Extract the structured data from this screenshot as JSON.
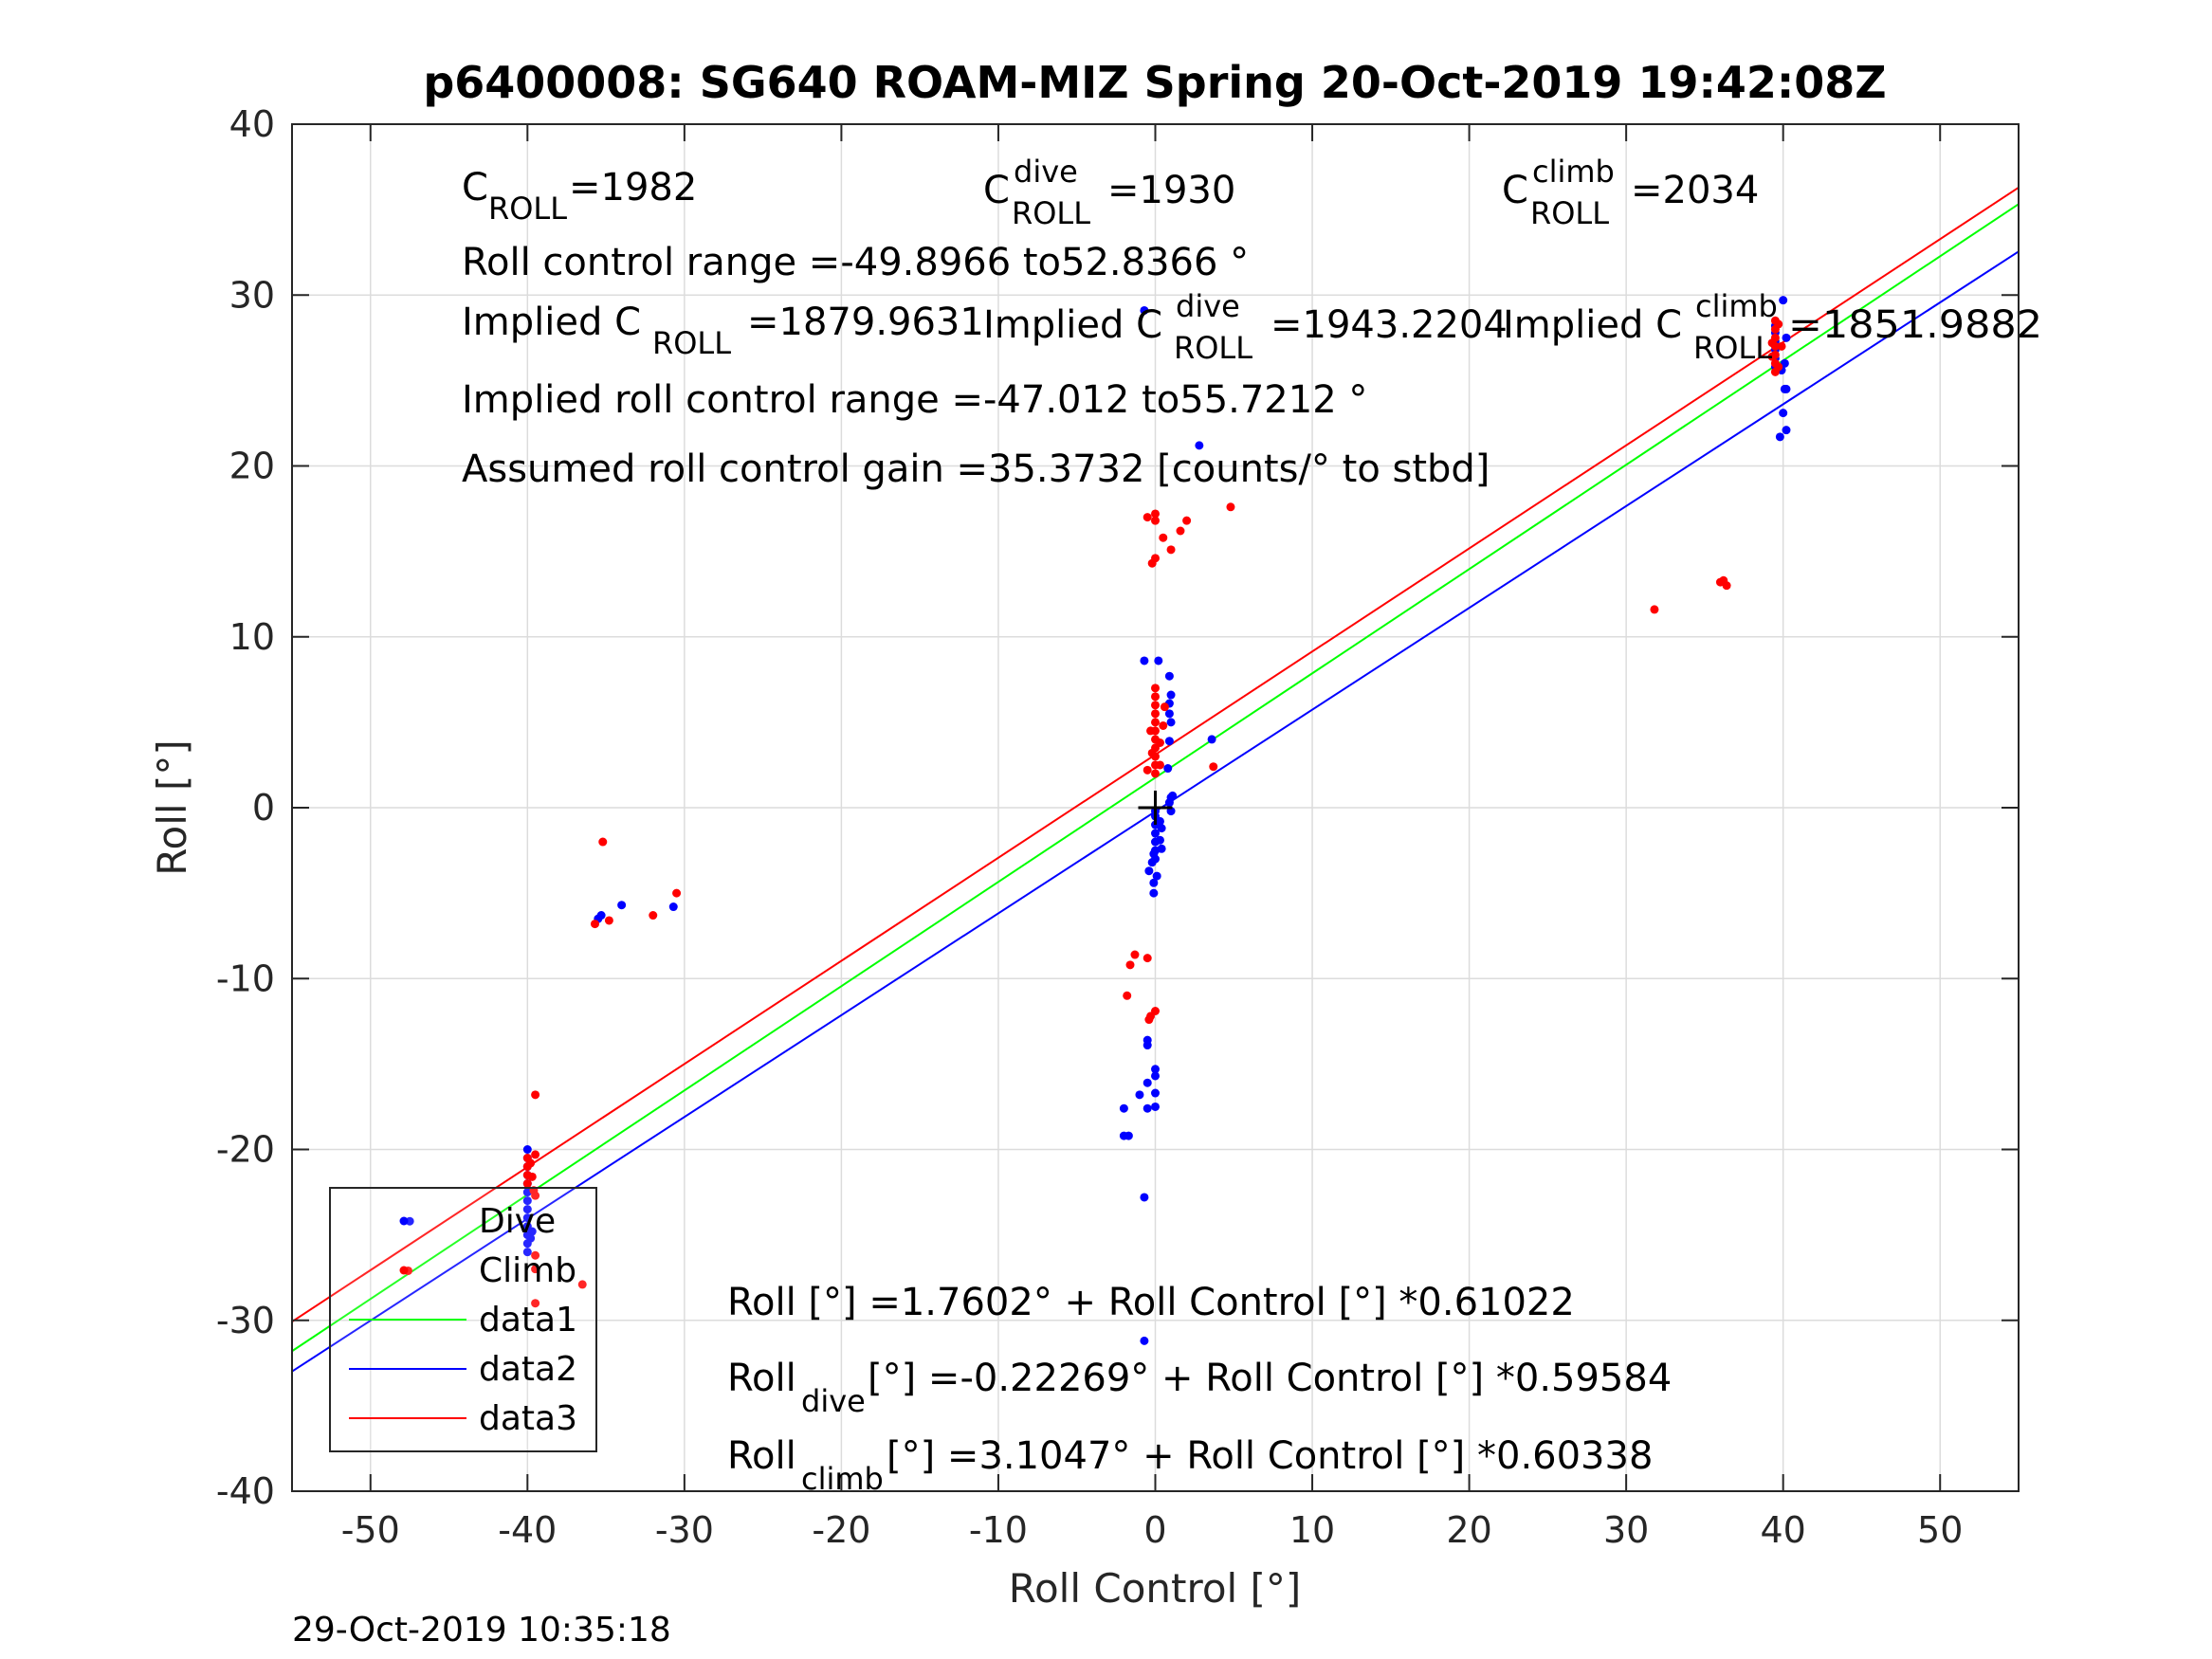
{
  "chart_data": {
    "type": "scatter",
    "title": "p6400008: SG640 ROAM-MIZ Spring 20-Oct-2019 19:42:08Z",
    "xlabel": "Roll Control [°]",
    "ylabel": "Roll [°]",
    "xlim": [
      -55,
      55
    ],
    "ylim": [
      -40,
      40
    ],
    "xticks": [
      -50,
      -40,
      -30,
      -20,
      -10,
      0,
      10,
      20,
      30,
      40,
      50
    ],
    "yticks": [
      -40,
      -30,
      -20,
      -10,
      0,
      10,
      20,
      30,
      40
    ],
    "xtick_labels": [
      "-50",
      "-40",
      "-30",
      "-20",
      "-10",
      "0",
      "10",
      "20",
      "30",
      "40",
      "50"
    ],
    "ytick_labels": [
      "-40",
      "-30",
      "-20",
      "-10",
      "0",
      "10",
      "20",
      "30",
      "40"
    ],
    "grid": true,
    "legend_position": "bottom-left",
    "legend": [
      "Dive",
      "Climb",
      "data1",
      "data2",
      "data3"
    ],
    "colors": {
      "dive": "#0000ff",
      "climb": "#ff0000",
      "data1": "#00ff00",
      "data2": "#0000ff",
      "data3": "#ff0000",
      "origin": "#000000"
    },
    "series": [
      {
        "name": "Dive",
        "style": "points",
        "color": "#0000ff",
        "points": [
          [
            -47.5,
            -24.2
          ],
          [
            -40.0,
            -20.0
          ],
          [
            -40.0,
            -20.5
          ],
          [
            -40.0,
            -21.0
          ],
          [
            -40.0,
            -21.5
          ],
          [
            -40.0,
            -22.0
          ],
          [
            -40.0,
            -22.5
          ],
          [
            -40.0,
            -23.0
          ],
          [
            -40.0,
            -23.5
          ],
          [
            -40.0,
            -24.0
          ],
          [
            -40.0,
            -24.5
          ],
          [
            -40.0,
            -25.0
          ],
          [
            -40.0,
            -25.5
          ],
          [
            -40.0,
            -26.0
          ],
          [
            -39.8,
            -25.2
          ],
          [
            -39.7,
            -24.8
          ],
          [
            -35.5,
            -6.5
          ],
          [
            -35.3,
            -6.3
          ],
          [
            -34.0,
            -5.7
          ],
          [
            -30.7,
            -5.8
          ],
          [
            -0.7,
            8.6
          ],
          [
            0.2,
            8.6
          ],
          [
            0.9,
            7.7
          ],
          [
            1.0,
            6.6
          ],
          [
            0.9,
            6.1
          ],
          [
            0.9,
            5.5
          ],
          [
            1.0,
            5.0
          ],
          [
            0.9,
            3.9
          ],
          [
            0.8,
            2.3
          ],
          [
            3.6,
            4.0
          ],
          [
            1.1,
            0.7
          ],
          [
            0.9,
            0.3
          ],
          [
            1.0,
            -0.2
          ],
          [
            1.0,
            0.6
          ],
          [
            0.0,
            -0.5
          ],
          [
            0.0,
            -1.0
          ],
          [
            0.0,
            -1.5
          ],
          [
            0.0,
            -2.0
          ],
          [
            0.0,
            -2.5
          ],
          [
            0.0,
            -3.0
          ],
          [
            0.0,
            -0.2
          ],
          [
            0.3,
            -0.8
          ],
          [
            0.4,
            -1.2
          ],
          [
            0.3,
            -1.9
          ],
          [
            -0.1,
            -2.7
          ],
          [
            0.4,
            -2.4
          ],
          [
            -0.2,
            -3.2
          ],
          [
            -0.4,
            -3.7
          ],
          [
            0.1,
            -4.0
          ],
          [
            -0.1,
            -4.4
          ],
          [
            -0.1,
            -5.0
          ],
          [
            -0.5,
            -13.6
          ],
          [
            -0.5,
            -13.9
          ],
          [
            0.0,
            -15.3
          ],
          [
            0.0,
            -15.7
          ],
          [
            -0.5,
            -16.1
          ],
          [
            0.0,
            -16.7
          ],
          [
            -1.0,
            -16.8
          ],
          [
            0.0,
            -17.5
          ],
          [
            -0.5,
            -17.6
          ],
          [
            -2.0,
            -17.6
          ],
          [
            -2.0,
            -19.2
          ],
          [
            -1.7,
            -19.2
          ],
          [
            -0.7,
            -22.8
          ],
          [
            -0.7,
            -31.2
          ],
          [
            -0.7,
            29.1
          ],
          [
            2.8,
            21.2
          ],
          [
            39.5,
            28.2
          ],
          [
            39.5,
            27.8
          ],
          [
            39.5,
            27.3
          ],
          [
            39.5,
            26.8
          ],
          [
            39.5,
            26.3
          ],
          [
            39.5,
            25.8
          ],
          [
            40.0,
            29.7
          ],
          [
            40.2,
            27.5
          ],
          [
            40.1,
            26.0
          ],
          [
            39.9,
            25.6
          ],
          [
            40.1,
            24.5
          ],
          [
            40.2,
            24.5
          ],
          [
            40.0,
            23.1
          ],
          [
            40.2,
            22.1
          ],
          [
            39.8,
            21.7
          ]
        ]
      },
      {
        "name": "Climb",
        "style": "points",
        "color": "#ff0000",
        "points": [
          [
            -47.6,
            -27.1
          ],
          [
            -40.0,
            -20.5
          ],
          [
            -40.0,
            -21.0
          ],
          [
            -40.0,
            -21.5
          ],
          [
            -40.0,
            -22.0
          ],
          [
            -39.8,
            -20.8
          ],
          [
            -39.7,
            -21.6
          ],
          [
            -39.6,
            -22.4
          ],
          [
            -39.5,
            -16.8
          ],
          [
            -39.5,
            -20.3
          ],
          [
            -39.5,
            -22.7
          ],
          [
            -39.5,
            -26.2
          ],
          [
            -39.5,
            -27.0
          ],
          [
            -39.5,
            -29.0
          ],
          [
            -36.5,
            -27.9
          ],
          [
            -35.2,
            -2.0
          ],
          [
            -35.7,
            -6.8
          ],
          [
            -34.8,
            -6.6
          ],
          [
            -32.0,
            -6.3
          ],
          [
            -30.5,
            -5.0
          ],
          [
            -0.5,
            17.0
          ],
          [
            0.0,
            17.2
          ],
          [
            0.0,
            16.8
          ],
          [
            0.5,
            15.8
          ],
          [
            1.0,
            15.1
          ],
          [
            1.6,
            16.2
          ],
          [
            2.0,
            16.8
          ],
          [
            4.8,
            17.6
          ],
          [
            0.0,
            14.6
          ],
          [
            -0.2,
            14.3
          ],
          [
            0.0,
            7.0
          ],
          [
            0.0,
            6.5
          ],
          [
            0.0,
            6.0
          ],
          [
            0.0,
            5.5
          ],
          [
            0.0,
            5.0
          ],
          [
            0.0,
            4.5
          ],
          [
            0.0,
            4.0
          ],
          [
            0.0,
            3.5
          ],
          [
            0.0,
            3.0
          ],
          [
            0.0,
            2.5
          ],
          [
            0.0,
            2.0
          ],
          [
            -0.3,
            4.5
          ],
          [
            0.3,
            3.8
          ],
          [
            -0.2,
            3.2
          ],
          [
            0.3,
            2.5
          ],
          [
            0.5,
            4.8
          ],
          [
            -0.5,
            2.2
          ],
          [
            0.6,
            5.9
          ],
          [
            3.7,
            2.4
          ],
          [
            -1.3,
            -8.6
          ],
          [
            -1.6,
            -9.2
          ],
          [
            -0.5,
            -8.8
          ],
          [
            -1.8,
            -11.0
          ],
          [
            0.0,
            -11.9
          ],
          [
            -0.3,
            -12.2
          ],
          [
            -0.4,
            -12.4
          ],
          [
            31.8,
            11.6
          ],
          [
            36.0,
            13.2
          ],
          [
            36.2,
            13.3
          ],
          [
            36.4,
            13.0
          ],
          [
            39.5,
            28.5
          ],
          [
            39.5,
            28.0
          ],
          [
            39.5,
            27.5
          ],
          [
            39.5,
            27.0
          ],
          [
            39.5,
            26.5
          ],
          [
            39.5,
            26.0
          ],
          [
            39.5,
            25.5
          ],
          [
            39.3,
            27.2
          ],
          [
            39.3,
            26.4
          ],
          [
            39.7,
            28.3
          ],
          [
            39.7,
            25.8
          ],
          [
            39.9,
            27.0
          ]
        ]
      },
      {
        "name": "data1",
        "style": "line",
        "color": "#00ff00",
        "x": [
          -55,
          55
        ],
        "y": [
          -31.802,
          35.322
        ]
      },
      {
        "name": "data2",
        "style": "line",
        "color": "#0000ff",
        "x": [
          -55,
          55
        ],
        "y": [
          -32.994,
          32.548
        ]
      },
      {
        "name": "data3",
        "style": "line",
        "color": "#ff0000",
        "x": [
          -55,
          55
        ],
        "y": [
          -30.081,
          36.291
        ]
      }
    ],
    "origin_marker": {
      "x": 0,
      "y": 0,
      "symbol": "+"
    },
    "annotations": {
      "c_roll": {
        "main": "C",
        "sub": "ROLL",
        "value": "=1982"
      },
      "c_roll_dive": {
        "main": "C",
        "sup": "dive",
        "sub": "ROLL",
        "value": "=1930"
      },
      "c_roll_climb": {
        "main": "C",
        "sup": "climb",
        "sub": "ROLL",
        "value": "=2034"
      },
      "roll_range": "Roll control range =-49.8966 to52.8366 °",
      "implied_c_roll": {
        "prefix": "Implied C",
        "sub": "ROLL",
        "value": "=1879.9631"
      },
      "implied_c_dive": {
        "prefix": "Implied C",
        "sup": "dive",
        "sub": "ROLL",
        "value": "=1943.2204"
      },
      "implied_c_climb": {
        "prefix": "Implied C",
        "sup": "climb",
        "sub": "ROLL",
        "value": "=1851.9882"
      },
      "implied_range": "Implied roll control range =-47.012 to55.7212 °",
      "gain": "Assumed roll control gain =35.3732 [counts/° to stbd]",
      "fit_all": "Roll [°] =1.7602° + Roll Control [°] *0.61022",
      "fit_dive": {
        "main": "Roll",
        "sub": "dive",
        "rest": " [°] =-0.22269° + Roll Control [°] *0.59584"
      },
      "fit_climb": {
        "main": "Roll",
        "sub": "climb",
        "rest": " [°] =3.1047° + Roll Control [°] *0.60338"
      }
    },
    "timestamp": "29-Oct-2019 10:35:18"
  }
}
